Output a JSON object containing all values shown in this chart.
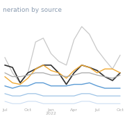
{
  "title": "neration by source",
  "background_color": "#ffffff",
  "x_labels": [
    "Jul",
    "Oct",
    "Jan\n2022",
    "Apr",
    "Jul",
    "Oct"
  ],
  "x_positions": [
    0,
    3,
    6,
    9,
    12,
    15
  ],
  "series": {
    "natural_gas": {
      "color": "#c8c8c8",
      "linewidth": 0.9,
      "values": [
        7.5,
        5.5,
        4.2,
        5.5,
        9.5,
        10.0,
        8.0,
        7.0,
        6.5,
        9.8,
        11.5,
        10.5,
        8.5,
        7.2,
        6.0,
        7.8
      ]
    },
    "coal": {
      "color": "#303030",
      "linewidth": 1.2,
      "values": [
        6.5,
        6.2,
        4.2,
        5.5,
        6.0,
        6.5,
        6.5,
        5.5,
        4.0,
        5.5,
        6.5,
        6.2,
        5.8,
        5.0,
        4.5,
        5.5
      ]
    },
    "solar_wind": {
      "color": "#f0a830",
      "linewidth": 1.0,
      "values": [
        5.0,
        4.2,
        4.0,
        4.8,
        6.0,
        6.5,
        5.8,
        5.5,
        4.8,
        5.8,
        6.5,
        6.2,
        5.5,
        6.0,
        6.0,
        5.5
      ]
    },
    "nuclear": {
      "color": "#a8a8a8",
      "linewidth": 0.9,
      "values": [
        5.5,
        5.0,
        5.0,
        5.2,
        5.5,
        5.5,
        5.2,
        5.2,
        5.0,
        5.2,
        5.5,
        5.5,
        5.2,
        5.0,
        4.8,
        5.2
      ]
    },
    "hydro": {
      "color": "#5b9bd5",
      "linewidth": 1.0,
      "values": [
        3.8,
        3.5,
        3.8,
        3.8,
        4.2,
        4.2,
        3.8,
        3.8,
        3.8,
        4.0,
        4.0,
        4.2,
        3.8,
        3.5,
        3.5,
        3.5
      ]
    },
    "wind": {
      "color": "#9dc3e6",
      "linewidth": 0.9,
      "values": [
        2.8,
        2.5,
        2.5,
        2.8,
        2.8,
        2.5,
        2.5,
        2.5,
        2.5,
        2.5,
        2.8,
        2.8,
        2.5,
        2.5,
        2.5,
        2.5
      ]
    },
    "solar": {
      "color": "#c5d9f1",
      "linewidth": 0.7,
      "values": [
        1.8,
        1.5,
        1.5,
        1.8,
        1.8,
        1.5,
        1.5,
        1.5,
        1.5,
        1.5,
        1.8,
        1.8,
        1.5,
        1.5,
        1.5,
        1.5
      ]
    }
  },
  "ylim": [
    1.0,
    13.0
  ],
  "xlim": [
    -0.3,
    15.3
  ],
  "title_color": "#8a9bb0",
  "title_fontsize": 6.5,
  "tick_fontsize": 4.5,
  "tick_color": "#aaaaaa",
  "grid_color": "#e8e8e8",
  "grid_linewidth": 0.5
}
